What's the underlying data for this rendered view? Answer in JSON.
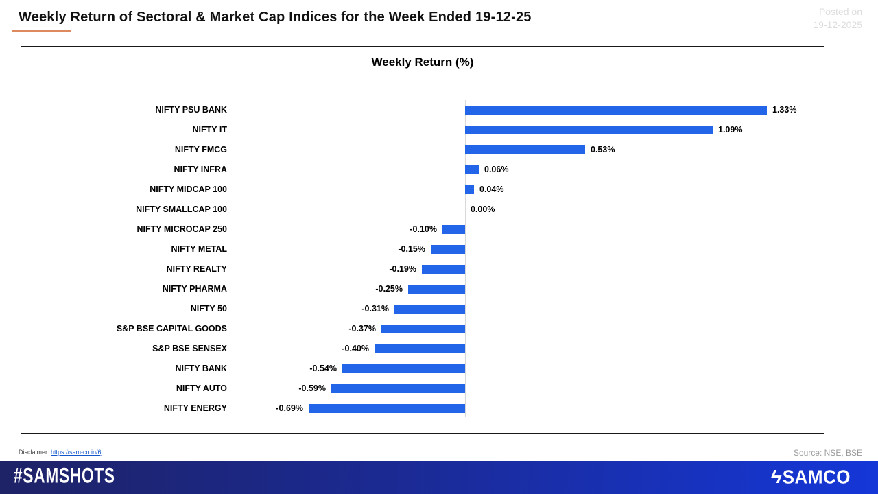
{
  "header": {
    "title": "Weekly Return of Sectoral & Market Cap Indices for the Week Ended 19-12-25",
    "posted_line1": "Posted on",
    "posted_line2": "19-12-2025"
  },
  "chart_data": {
    "type": "bar",
    "orientation": "horizontal",
    "title": "Weekly Return (%)",
    "categories": [
      "NIFTY PSU BANK",
      "NIFTY IT",
      "NIFTY FMCG",
      "NIFTY INFRA",
      "NIFTY MIDCAP 100",
      "NIFTY SMALLCAP 100",
      "NIFTY MICROCAP 250",
      "NIFTY METAL",
      "NIFTY REALTY",
      "NIFTY PHARMA",
      "NIFTY 50",
      "S&P BSE CAPITAL GOODS",
      "S&P BSE SENSEX",
      "NIFTY BANK",
      "NIFTY AUTO",
      "NIFTY ENERGY"
    ],
    "values": [
      1.33,
      1.09,
      0.53,
      0.06,
      0.04,
      0.0,
      -0.1,
      -0.15,
      -0.19,
      -0.25,
      -0.31,
      -0.37,
      -0.4,
      -0.54,
      -0.59,
      -0.69
    ],
    "value_labels": [
      "1.33%",
      "1.09%",
      "0.53%",
      "0.06%",
      "0.04%",
      "0.00%",
      "-0.10%",
      "-0.15%",
      "-0.19%",
      "-0.25%",
      "-0.31%",
      "-0.37%",
      "-0.40%",
      "-0.54%",
      "-0.59%",
      "-0.69%"
    ],
    "xlim": [
      -0.69,
      1.33
    ],
    "grid": false,
    "legend": false,
    "bar_color": "#2365e8",
    "axis_line_color": "#d9d9d9"
  },
  "colors": {
    "title_underline": "#dd8a5f",
    "footer_gradient_left": "#1e2266",
    "footer_gradient_right": "#1537d8",
    "link": "#1155cc"
  },
  "footer": {
    "disclaimer_label": "Disclaimer:",
    "disclaimer_link": "https://sam-co.in/6j",
    "source": "Source: NSE, BSE",
    "hashtag": "#SAMSHOTS",
    "brand_icon": "ϟ",
    "brand_name": "SAMCO"
  }
}
